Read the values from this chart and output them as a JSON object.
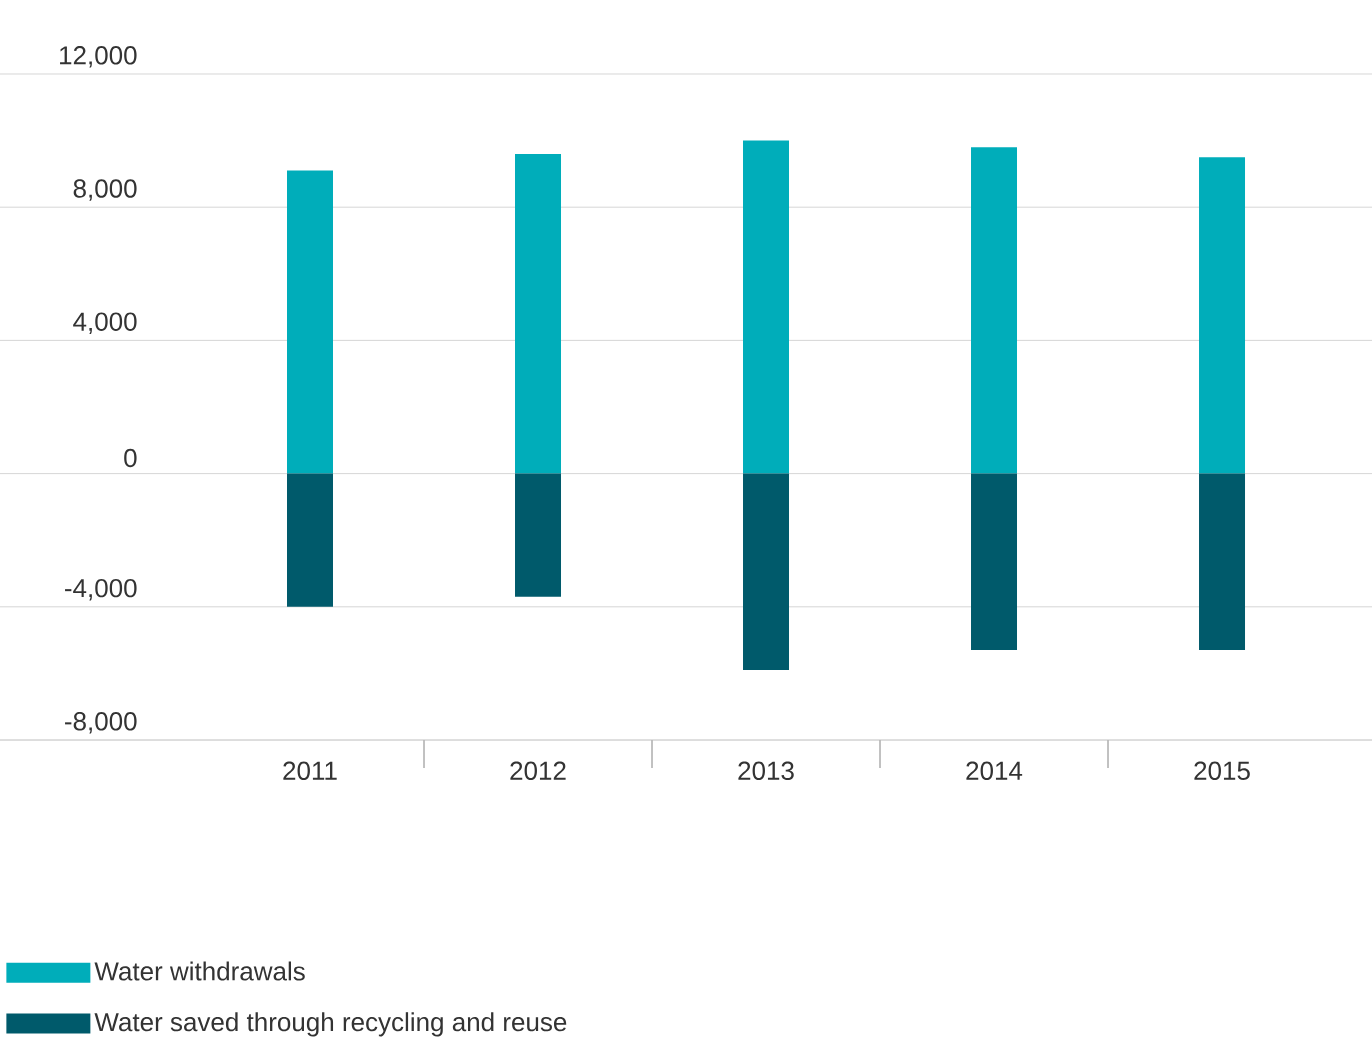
{
  "chart_data": {
    "type": "bar",
    "categories": [
      "2011",
      "2012",
      "2013",
      "2014",
      "2015"
    ],
    "series": [
      {
        "name": "Water withdrawals",
        "color": "#00adba",
        "values": [
          9100,
          9600,
          10000,
          9800,
          9500
        ]
      },
      {
        "name": "Water saved through recycling and reuse",
        "color": "#005a6b",
        "values": [
          -4000,
          -3700,
          -5900,
          -5300,
          -5300
        ]
      }
    ],
    "ylim": [
      -8000,
      12000
    ],
    "yticks": [
      {
        "value": -8000,
        "label": "-8,000"
      },
      {
        "value": -4000,
        "label": "-4,000"
      },
      0,
      {
        "value": 4000,
        "label": "4,000"
      },
      {
        "value": 8000,
        "label": "8,000"
      },
      {
        "value": 12000,
        "label": "12,000"
      }
    ],
    "grid": "y",
    "legend": "bottom",
    "stacked": true
  }
}
